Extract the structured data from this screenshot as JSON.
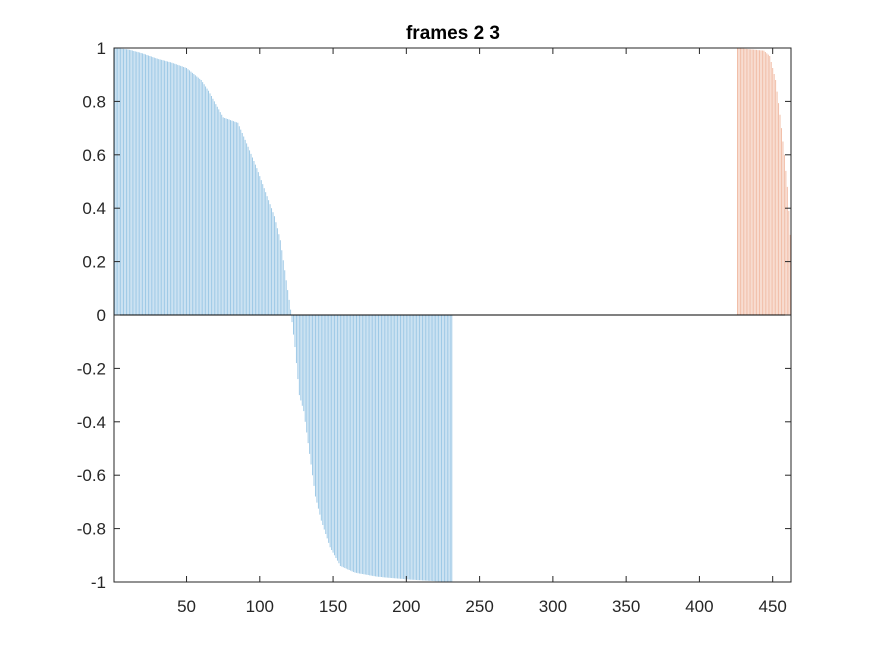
{
  "chart_data": {
    "type": "bar",
    "title": "frames 2 3",
    "xlabel": "",
    "ylabel": "",
    "xlim": [
      0.5,
      462.5
    ],
    "ylim": [
      -1,
      1
    ],
    "x_ticks": [
      50,
      100,
      150,
      200,
      250,
      300,
      350,
      400,
      450
    ],
    "y_ticks": [
      -1,
      -0.8,
      -0.6,
      -0.4,
      -0.2,
      0,
      0.2,
      0.4,
      0.6,
      0.8,
      1
    ],
    "grid": false,
    "legend": "none",
    "series": [
      {
        "color": "#0072BD",
        "x_range": [
          1,
          231
        ],
        "profile_points": [
          [
            1,
            1.0
          ],
          [
            10,
            0.995
          ],
          [
            20,
            0.98
          ],
          [
            30,
            0.96
          ],
          [
            40,
            0.945
          ],
          [
            50,
            0.925
          ],
          [
            60,
            0.88
          ],
          [
            65,
            0.84
          ],
          [
            70,
            0.79
          ],
          [
            75,
            0.74
          ],
          [
            85,
            0.72
          ],
          [
            92,
            0.63
          ],
          [
            98,
            0.55
          ],
          [
            104,
            0.46
          ],
          [
            110,
            0.37
          ],
          [
            114,
            0.28
          ],
          [
            118,
            0.13
          ],
          [
            121,
            0.02
          ],
          [
            124,
            -0.12
          ],
          [
            127,
            -0.3
          ],
          [
            130,
            -0.36
          ],
          [
            134,
            -0.52
          ],
          [
            138,
            -0.68
          ],
          [
            142,
            -0.77
          ],
          [
            148,
            -0.87
          ],
          [
            155,
            -0.94
          ],
          [
            165,
            -0.965
          ],
          [
            180,
            -0.98
          ],
          [
            200,
            -0.99
          ],
          [
            220,
            -0.997
          ],
          [
            231,
            -1.0
          ]
        ]
      },
      {
        "color": "#D95319",
        "x_range": [
          426,
          462
        ],
        "profile_points": [
          [
            426,
            1.0
          ],
          [
            444,
            0.99
          ],
          [
            448,
            0.97
          ],
          [
            452,
            0.88
          ],
          [
            455,
            0.75
          ],
          [
            458,
            0.6
          ],
          [
            460,
            0.48
          ],
          [
            462,
            0.3
          ]
        ]
      }
    ],
    "bar_alpha": 0.38
  },
  "colors": {
    "axis": "#262626",
    "background": "#ffffff"
  }
}
